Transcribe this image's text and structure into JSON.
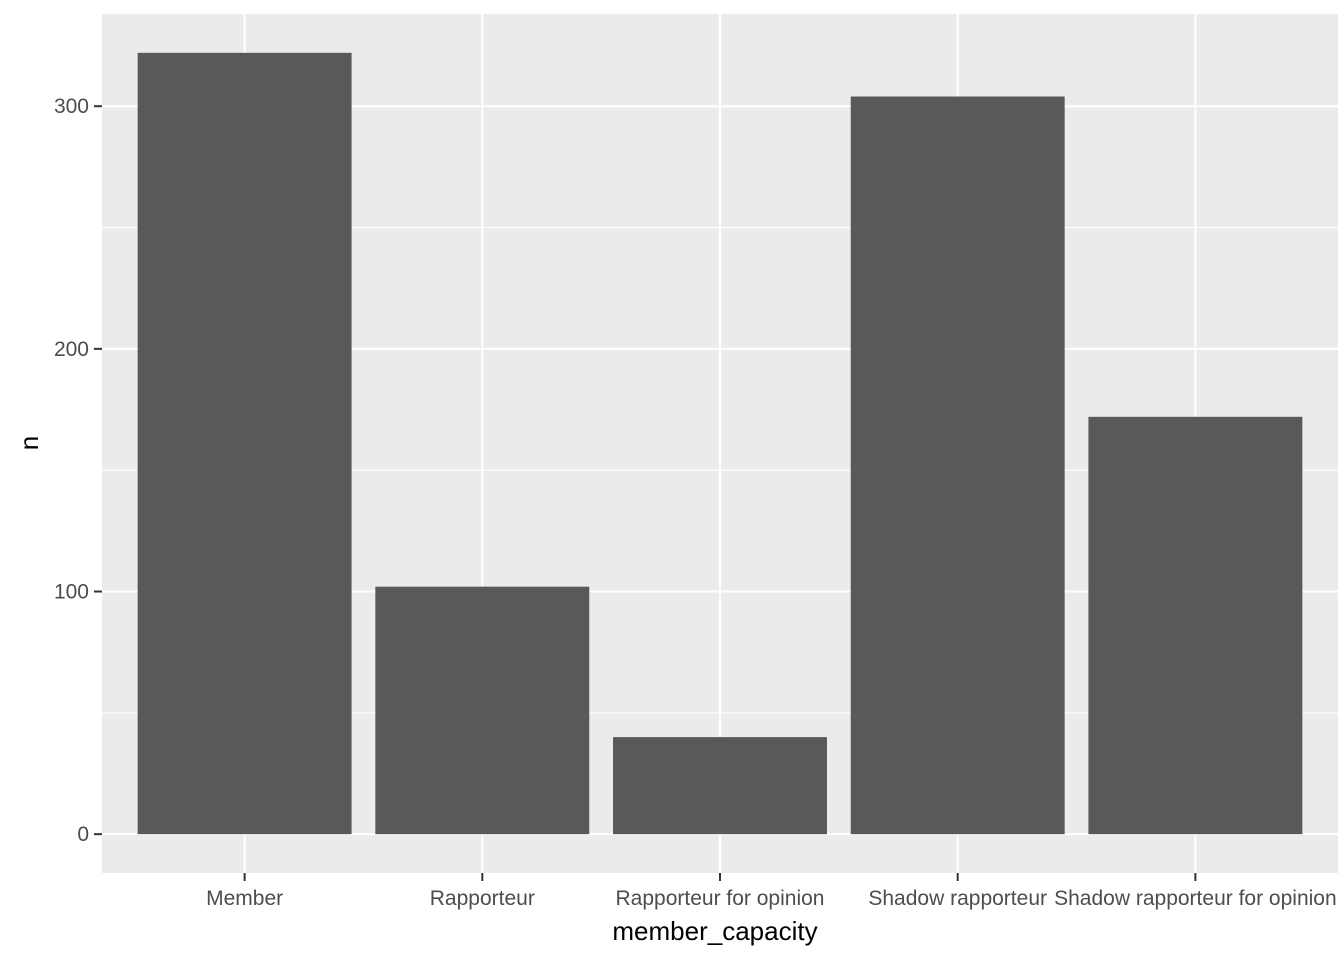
{
  "chart_data": {
    "type": "bar",
    "categories": [
      "Member",
      "Rapporteur",
      "Rapporteur for opinion",
      "Shadow rapporteur",
      "Shadow rapporteur for opinion"
    ],
    "values": [
      322,
      102,
      40,
      304,
      172
    ],
    "xlabel": "member_capacity",
    "ylabel": "n",
    "ylim": [
      -16,
      338
    ],
    "yticks": [
      0,
      100,
      200,
      300
    ],
    "ytick_labels": [
      "0",
      "100",
      "200",
      "300"
    ],
    "grid": true,
    "colors": {
      "panel": "#ebebeb",
      "grid": "#ffffff",
      "bar": "#595959",
      "tick": "#333333",
      "tick_label": "#4d4d4d"
    }
  }
}
